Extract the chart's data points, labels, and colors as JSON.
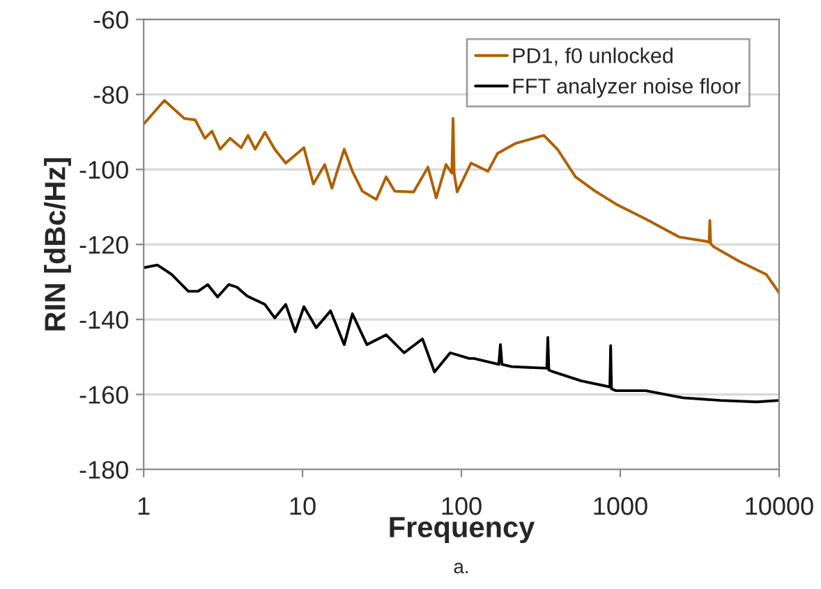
{
  "chart_data": {
    "type": "line",
    "xlabel": "Frequency",
    "ylabel": "RIN [dBc/Hz]",
    "annotations": [
      "a."
    ],
    "log": "x",
    "grid": "y",
    "legend": "top right",
    "line_style": "solid",
    "marker": "none",
    "xlim": [
      1,
      10000
    ],
    "xticks": [
      1,
      10,
      100,
      1000,
      10000
    ],
    "ylim": [
      -180,
      -60
    ],
    "yticks": [
      -180,
      -160,
      -140,
      -120,
      -100,
      -80,
      -60
    ],
    "series": [
      {
        "name": "PD1, f0 unlocked",
        "color": "#b05f00",
        "x": [
          1,
          1.35,
          1.8,
          2.11,
          2.43,
          2.69,
          3.03,
          3.5,
          4.11,
          4.54,
          5.03,
          5.8,
          6.68,
          7.84,
          10.2,
          11.7,
          13.8,
          15.3,
          18.3,
          20.6,
          23.8,
          29.1,
          33.6,
          38,
          50,
          61.6,
          69.4,
          80,
          87,
          88.6,
          90,
          94,
          115,
          147,
          169,
          218,
          330,
          402,
          523,
          696,
          964,
          1445,
          2343,
          3500,
          3620,
          3665,
          3710,
          3870,
          5550,
          8300,
          10000
        ],
        "values": [
          -87.9,
          -81.6,
          -86.4,
          -86.8,
          -91.7,
          -89.8,
          -94.6,
          -91.7,
          -94.2,
          -90.9,
          -94.6,
          -90.1,
          -94.6,
          -98.3,
          -94.2,
          -103.9,
          -98.7,
          -105,
          -94.6,
          -100.5,
          -105.8,
          -108,
          -102,
          -105.8,
          -106,
          -99.4,
          -107.6,
          -98.7,
          -101,
          -86.4,
          -101,
          -106,
          -98.3,
          -100.5,
          -95.7,
          -93.1,
          -90.9,
          -94.6,
          -102,
          -105.8,
          -109.5,
          -113.2,
          -118,
          -119.2,
          -119.4,
          -113.6,
          -119.8,
          -120.6,
          -124.4,
          -128,
          -132.9
        ]
      },
      {
        "name": "FFT analyzer noise floor",
        "color": "#000000",
        "x": [
          1,
          1.22,
          1.5,
          1.91,
          2.2,
          2.53,
          2.92,
          3.43,
          3.87,
          4.46,
          5.8,
          6.68,
          7.84,
          9.0,
          10.2,
          12.2,
          15,
          18.3,
          20.6,
          25.4,
          33.6,
          43.6,
          56.9,
          67.7,
          85,
          112,
          120,
          172,
          176,
          180,
          207,
          345,
          350,
          355,
          380,
          569,
          860,
          870,
          880,
          940,
          1445,
          2480,
          4270,
          7200,
          10000
        ],
        "values": [
          -126.2,
          -125.5,
          -128,
          -132.5,
          -132.5,
          -130.7,
          -134,
          -130.7,
          -131.4,
          -133.7,
          -136,
          -139.6,
          -136,
          -143.3,
          -136.6,
          -142.2,
          -137.7,
          -146.7,
          -138.5,
          -146.7,
          -144.1,
          -148.9,
          -145.2,
          -154,
          -148.9,
          -150.4,
          -150.4,
          -152,
          -146.7,
          -152,
          -152.6,
          -153,
          -144.8,
          -153.5,
          -154,
          -156.4,
          -158,
          -147,
          -158.5,
          -159,
          -159,
          -160.9,
          -161.6,
          -162,
          -161.6
        ]
      }
    ]
  }
}
